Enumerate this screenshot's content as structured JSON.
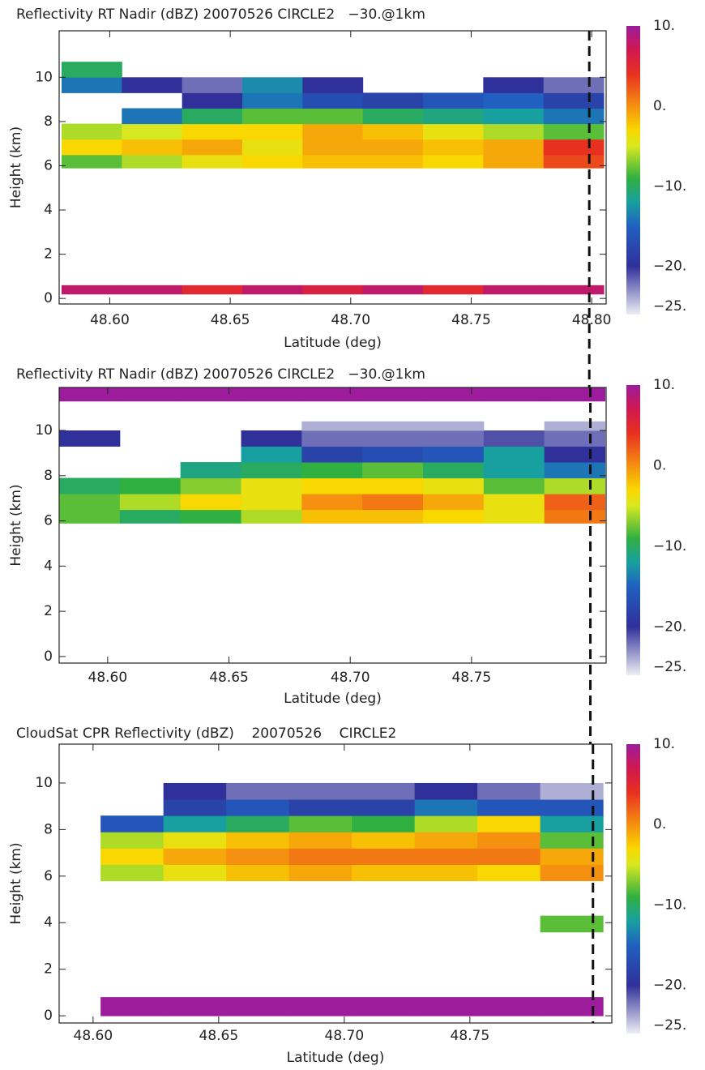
{
  "chart_data": [
    {
      "type": "heatmap",
      "title": "Reflectivity RT Nadir (dBZ) 20070526 CIRCLE2   −30.@1km",
      "xlabel": "Latitude (deg)",
      "ylabel": "Height (km)",
      "xlim": [
        48.579,
        48.806
      ],
      "ylim": [
        -0.25,
        12.1
      ],
      "xticks": [
        {
          "value": 48.6,
          "label": "48.60"
        },
        {
          "value": 48.65,
          "label": "48.65"
        },
        {
          "value": 48.7,
          "label": "48.70"
        },
        {
          "value": 48.75,
          "label": "48.75"
        },
        {
          "value": 48.8,
          "label": "48.80"
        }
      ],
      "yticks": [
        0,
        2,
        4,
        6,
        8,
        10
      ],
      "xbins": [
        48.58,
        48.605,
        48.63,
        48.655,
        48.68,
        48.705,
        48.73,
        48.755,
        48.78,
        48.805
      ],
      "ybins": [
        0.2,
        0.6,
        5.9,
        6.5,
        7.2,
        7.9,
        8.6,
        9.3,
        10,
        10.7,
        11.9
      ],
      "z": [
        [
          8,
          8,
          5,
          8,
          6,
          8,
          5,
          8,
          8
        ],
        [
          null,
          null,
          null,
          null,
          null,
          null,
          null,
          null,
          null
        ],
        [
          -8,
          -6,
          -4,
          -3,
          -2,
          -2,
          -3,
          -1,
          3
        ],
        [
          -3,
          -2,
          -1,
          -4,
          -1,
          -1,
          -2,
          -1,
          4
        ],
        [
          -6,
          -5,
          -3,
          -3,
          -1,
          -2,
          -4,
          -6,
          -8
        ],
        [
          null,
          -14,
          -10,
          -8,
          -8,
          -10,
          -11,
          -12,
          -14
        ],
        [
          null,
          null,
          -20,
          -14,
          -17,
          -18,
          -16,
          -15,
          -18
        ],
        [
          -14,
          -20,
          -22,
          -13,
          -20,
          null,
          null,
          -20,
          -22
        ],
        [
          -10,
          null,
          null,
          null,
          null,
          null,
          null,
          null,
          null
        ],
        [
          null,
          null,
          null,
          null,
          null,
          null,
          null,
          null,
          null
        ]
      ],
      "clim": [
        -26,
        10
      ],
      "cticks": [
        {
          "value": 10,
          "label": "10."
        },
        {
          "value": 0,
          "label": "0."
        },
        {
          "value": -10,
          "label": "−10."
        },
        {
          "value": -20,
          "label": "−20."
        },
        {
          "value": -25,
          "label": "−25."
        }
      ],
      "colorscale": [
        [
          -26,
          "#eeeef4"
        ],
        [
          -20,
          "#30309a"
        ],
        [
          -15,
          "#2060c0"
        ],
        [
          -12,
          "#18a0a0"
        ],
        [
          -9,
          "#30b040"
        ],
        [
          -5,
          "#d8e820"
        ],
        [
          -3,
          "#f8d800"
        ],
        [
          0,
          "#f59010"
        ],
        [
          4,
          "#e83020"
        ],
        [
          7,
          "#d01850"
        ],
        [
          10,
          "#9c1c9c"
        ]
      ],
      "marker_x": 48.799
    },
    {
      "type": "heatmap",
      "title": "Reflectivity RT Nadir (dBZ) 20070526 CIRCLE2   −30.@1km",
      "xlabel": "Latitude (deg)",
      "ylabel": "Height (km)",
      "xlim": [
        48.58,
        48.8055
      ],
      "ylim": [
        -0.29,
        11.9
      ],
      "xticks": [
        {
          "value": 48.6,
          "label": "48.60"
        },
        {
          "value": 48.65,
          "label": "48.65"
        },
        {
          "value": 48.7,
          "label": "48.70"
        },
        {
          "value": 48.75,
          "label": "48.75"
        }
      ],
      "yticks": [
        0,
        2,
        4,
        6,
        8,
        10
      ],
      "xbins": [
        48.58,
        48.605,
        48.63,
        48.655,
        48.68,
        48.705,
        48.73,
        48.755,
        48.78,
        48.805
      ],
      "ybins": [
        0.2,
        0.6,
        5.9,
        6.5,
        7.2,
        7.9,
        8.6,
        9.3,
        10,
        10.4,
        11.3,
        11.9
      ],
      "z": [
        [
          null,
          null,
          null,
          null,
          null,
          null,
          null,
          null,
          null
        ],
        [
          null,
          null,
          null,
          null,
          null,
          null,
          null,
          null,
          null
        ],
        [
          -8,
          -10,
          -9,
          -6,
          -2,
          -2,
          -3,
          -4,
          1
        ],
        [
          -8,
          -6,
          -3,
          -4,
          0,
          1,
          -1,
          -4,
          2
        ],
        [
          -10,
          -9,
          -7,
          -4,
          -3,
          -3,
          -4,
          -8,
          -6
        ],
        [
          null,
          null,
          -11,
          -10,
          -9,
          -8,
          -10,
          -12,
          -14
        ],
        [
          null,
          null,
          null,
          -12,
          -18,
          -17,
          -16,
          -12,
          -20
        ],
        [
          -20,
          null,
          null,
          -20,
          -22,
          -22,
          -22,
          -21,
          -22
        ],
        [
          null,
          null,
          null,
          null,
          -24,
          -24,
          -24,
          null,
          -24
        ],
        [
          null,
          null,
          null,
          null,
          null,
          null,
          null,
          null,
          null
        ],
        [
          10,
          10,
          10,
          10,
          10,
          10,
          10,
          10,
          10
        ]
      ],
      "clim": [
        -26,
        10
      ],
      "cticks": [
        {
          "value": 10,
          "label": "10."
        },
        {
          "value": 0,
          "label": "0."
        },
        {
          "value": -10,
          "label": "−10."
        },
        {
          "value": -20,
          "label": "−20."
        },
        {
          "value": -25,
          "label": "−25."
        }
      ],
      "colorscale": [
        [
          -26,
          "#eeeef4"
        ],
        [
          -20,
          "#30309a"
        ],
        [
          -15,
          "#2060c0"
        ],
        [
          -12,
          "#18a0a0"
        ],
        [
          -9,
          "#30b040"
        ],
        [
          -5,
          "#d8e820"
        ],
        [
          -3,
          "#f8d800"
        ],
        [
          0,
          "#f59010"
        ],
        [
          4,
          "#e83020"
        ],
        [
          7,
          "#d01850"
        ],
        [
          10,
          "#9c1c9c"
        ]
      ],
      "marker_x": 48.799
    },
    {
      "type": "heatmap",
      "title": "CloudSat CPR Reflectivity (dBZ)    20070526    CIRCLE2",
      "xlabel": "Latitude (deg)",
      "ylabel": "Height (km)",
      "xlim": [
        48.5865,
        48.8065
      ],
      "ylim": [
        -0.31,
        11.67
      ],
      "xticks": [
        {
          "value": 48.6,
          "label": "48.60"
        },
        {
          "value": 48.65,
          "label": "48.65"
        },
        {
          "value": 48.7,
          "label": "48.70"
        },
        {
          "value": 48.75,
          "label": "48.75"
        }
      ],
      "yticks": [
        0,
        2,
        4,
        6,
        8,
        10
      ],
      "xbins": [
        48.603,
        48.628,
        48.653,
        48.678,
        48.703,
        48.728,
        48.753,
        48.778,
        48.803
      ],
      "ybins": [
        0,
        0.8,
        3.6,
        4.3,
        5.8,
        6.5,
        7.2,
        7.9,
        8.6,
        9.3,
        10
      ],
      "z": [
        [
          10,
          10,
          10,
          10,
          10,
          10,
          10,
          10
        ],
        [
          null,
          null,
          null,
          null,
          null,
          null,
          null,
          null
        ],
        [
          null,
          null,
          null,
          null,
          null,
          null,
          null,
          -8
        ],
        [
          null,
          null,
          null,
          null,
          null,
          null,
          null,
          null
        ],
        [
          -6,
          -4,
          -2,
          -1,
          -2,
          -2,
          -3,
          0
        ],
        [
          -3,
          -1,
          0,
          1,
          1,
          1,
          1,
          -1
        ],
        [
          -6,
          -4,
          -2,
          -1,
          -2,
          -1,
          0,
          -8
        ],
        [
          -16,
          -12,
          -10,
          -8,
          -9,
          -6,
          -3,
          -12
        ],
        [
          null,
          -18,
          -16,
          -18,
          -18,
          -14,
          -16,
          -16
        ],
        [
          null,
          -20,
          -22,
          -22,
          -22,
          -20,
          -22,
          -24
        ]
      ],
      "clim": [
        -26,
        10
      ],
      "cticks": [
        {
          "value": 10,
          "label": "10."
        },
        {
          "value": 0,
          "label": "0."
        },
        {
          "value": -10,
          "label": "−10."
        },
        {
          "value": -20,
          "label": "−20."
        },
        {
          "value": -25,
          "label": "−25."
        }
      ],
      "colorscale": [
        [
          -26,
          "#eeeef4"
        ],
        [
          -20,
          "#30309a"
        ],
        [
          -15,
          "#2060c0"
        ],
        [
          -12,
          "#18a0a0"
        ],
        [
          -9,
          "#30b040"
        ],
        [
          -5,
          "#d8e820"
        ],
        [
          -3,
          "#f8d800"
        ],
        [
          0,
          "#f59010"
        ],
        [
          4,
          "#e83020"
        ],
        [
          7,
          "#d01850"
        ],
        [
          10,
          "#9c1c9c"
        ]
      ],
      "marker_x": 48.799
    }
  ]
}
